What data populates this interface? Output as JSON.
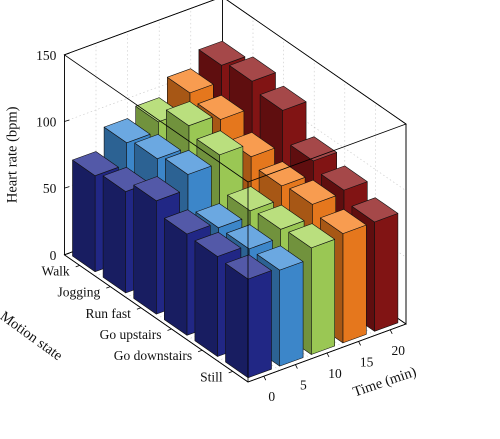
{
  "chart_data": {
    "type": "bar3d",
    "zlabel": "Heart rate (bpm)",
    "ylabel": "Motion state",
    "xlabel": "Time (min)",
    "zlim": [
      0,
      150
    ],
    "z_ticks": [
      "0",
      "50",
      "100",
      "150"
    ],
    "x_ticks": [
      "0",
      "5",
      "10",
      "15",
      "20"
    ],
    "categories": [
      "Walk",
      "Jogging",
      "Run fast",
      "Go upstairs",
      "Go downstairs",
      "Still"
    ],
    "series": [
      {
        "time": 0,
        "color": "#232a8f",
        "values": [
          72,
          76,
          85,
          76,
          75,
          74
        ]
      },
      {
        "time": 5,
        "color": "#4190d8",
        "values": [
          88,
          92,
          96,
          72,
          72,
          72
        ]
      },
      {
        "time": 10,
        "color": "#a6d65a",
        "values": [
          95,
          108,
          102,
          76,
          78,
          80
        ]
      },
      {
        "time": 15,
        "color": "#f6801f",
        "values": [
          108,
          104,
          92,
          86,
          88,
          82
        ]
      },
      {
        "time": 20,
        "color": "#8b1516",
        "values": [
          120,
          124,
          118,
          96,
          90,
          82
        ]
      }
    ],
    "grid": true
  }
}
